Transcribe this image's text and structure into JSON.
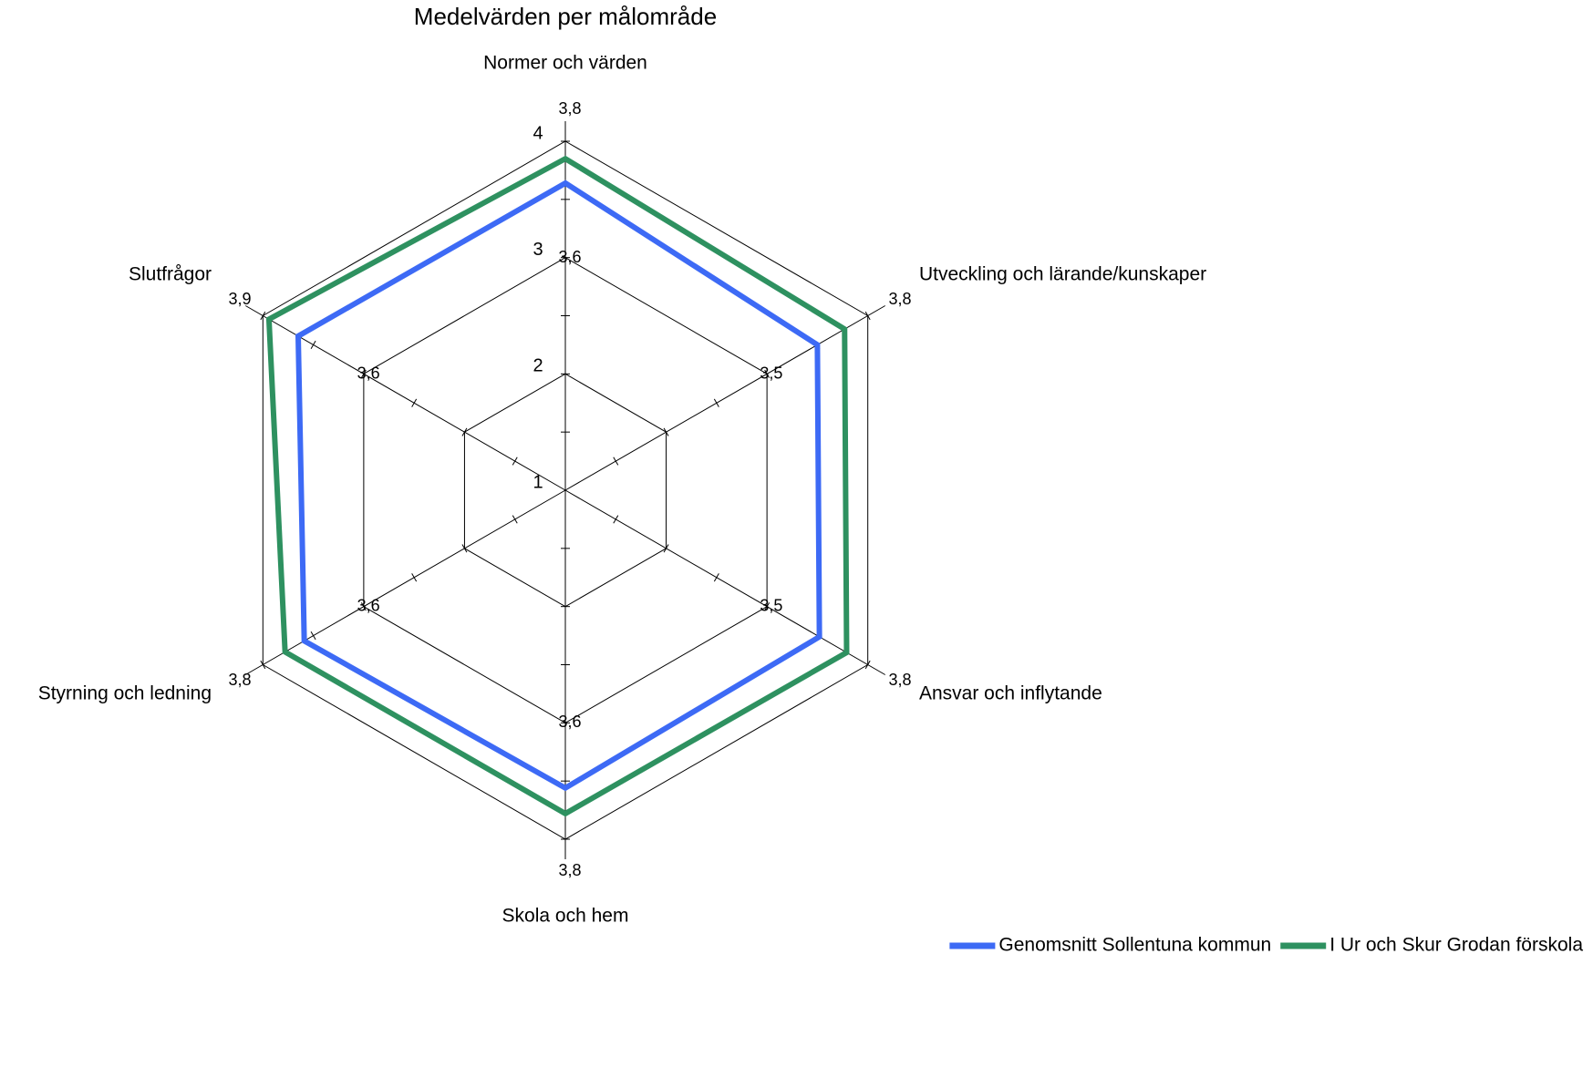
{
  "chart_data": {
    "type": "radar",
    "title": "Medelvärden per målområde",
    "categories": [
      "Normer och värden",
      "Utveckling och lärande/kunskaper",
      "Ansvar och inflytande",
      "Skola och hem",
      "Styrning och ledning",
      "Slutfrågor"
    ],
    "series": [
      {
        "name": "Genomsnitt Sollentuna kommun",
        "color": "#3d6af5",
        "values": [
          3.64,
          3.5,
          3.52,
          3.56,
          3.59,
          3.65
        ],
        "value_labels": [
          "3,6",
          "3,5",
          "3,5",
          "3,6",
          "3,6",
          "3,6"
        ]
      },
      {
        "name": "I Ur och Skur Grodan förskola",
        "color": "#2e9160",
        "values": [
          3.85,
          3.77,
          3.79,
          3.78,
          3.78,
          3.94
        ],
        "value_labels": [
          "3,8",
          "3,8",
          "3,8",
          "3,8",
          "3,8",
          "3,9"
        ]
      }
    ],
    "rlim": [
      1,
      4
    ],
    "rticks": [
      1,
      2,
      3,
      4
    ],
    "minor_ticks": [
      1.5,
      2.5,
      3.5
    ],
    "grid": true,
    "legend": "bottom-right"
  }
}
